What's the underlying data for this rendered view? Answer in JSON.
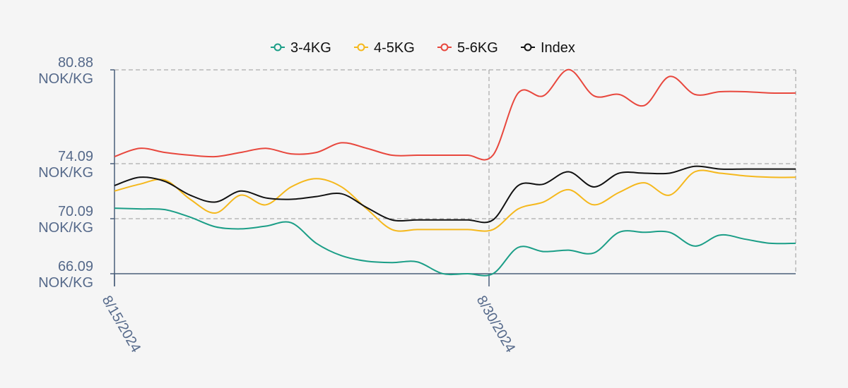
{
  "chart_data": {
    "type": "line",
    "unit": "NOK/KG",
    "y_ticks": [
      66.09,
      70.09,
      74.09,
      80.88
    ],
    "ylim": [
      66.09,
      80.88
    ],
    "x_tick_labels": [
      "8/15/2024",
      "8/30/2024"
    ],
    "x_tick_index": [
      0,
      15
    ],
    "x_count": 28,
    "grid": true,
    "legend_position": "top",
    "series": [
      {
        "name": "3-4KG",
        "color": "#1b9e87",
        "values": [
          70.85,
          70.8,
          70.75,
          70.2,
          69.5,
          69.35,
          69.55,
          69.8,
          68.3,
          67.4,
          67.0,
          66.9,
          66.95,
          66.1,
          66.09,
          66.09,
          68.0,
          67.7,
          67.8,
          67.6,
          69.1,
          69.1,
          69.1,
          68.1,
          68.9,
          68.6,
          68.3,
          68.3
        ]
      },
      {
        "name": "4-5KG",
        "color": "#f5b81c",
        "values": [
          72.1,
          72.6,
          72.9,
          71.5,
          70.5,
          71.8,
          71.1,
          72.4,
          73.0,
          72.4,
          70.8,
          69.3,
          69.3,
          69.3,
          69.3,
          69.3,
          70.8,
          71.3,
          72.2,
          71.1,
          72.0,
          72.7,
          71.8,
          73.5,
          73.4,
          73.2,
          73.1,
          73.1
        ]
      },
      {
        "name": "5-6KG",
        "color": "#e8473d",
        "values": [
          74.6,
          75.2,
          74.9,
          74.7,
          74.6,
          74.9,
          75.2,
          74.8,
          74.9,
          75.6,
          75.2,
          74.7,
          74.7,
          74.7,
          74.7,
          74.7,
          79.2,
          79.0,
          80.9,
          79.0,
          79.1,
          78.3,
          80.4,
          79.1,
          79.3,
          79.3,
          79.2,
          79.2
        ]
      },
      {
        "name": "Index",
        "color": "#111111",
        "values": [
          72.5,
          73.1,
          72.8,
          71.8,
          71.3,
          72.1,
          71.6,
          71.5,
          71.7,
          71.9,
          70.9,
          70.0,
          70.0,
          70.0,
          70.0,
          70.0,
          72.5,
          72.6,
          73.5,
          72.4,
          73.4,
          73.4,
          73.4,
          73.9,
          73.7,
          73.7,
          73.7,
          73.7
        ]
      }
    ]
  }
}
